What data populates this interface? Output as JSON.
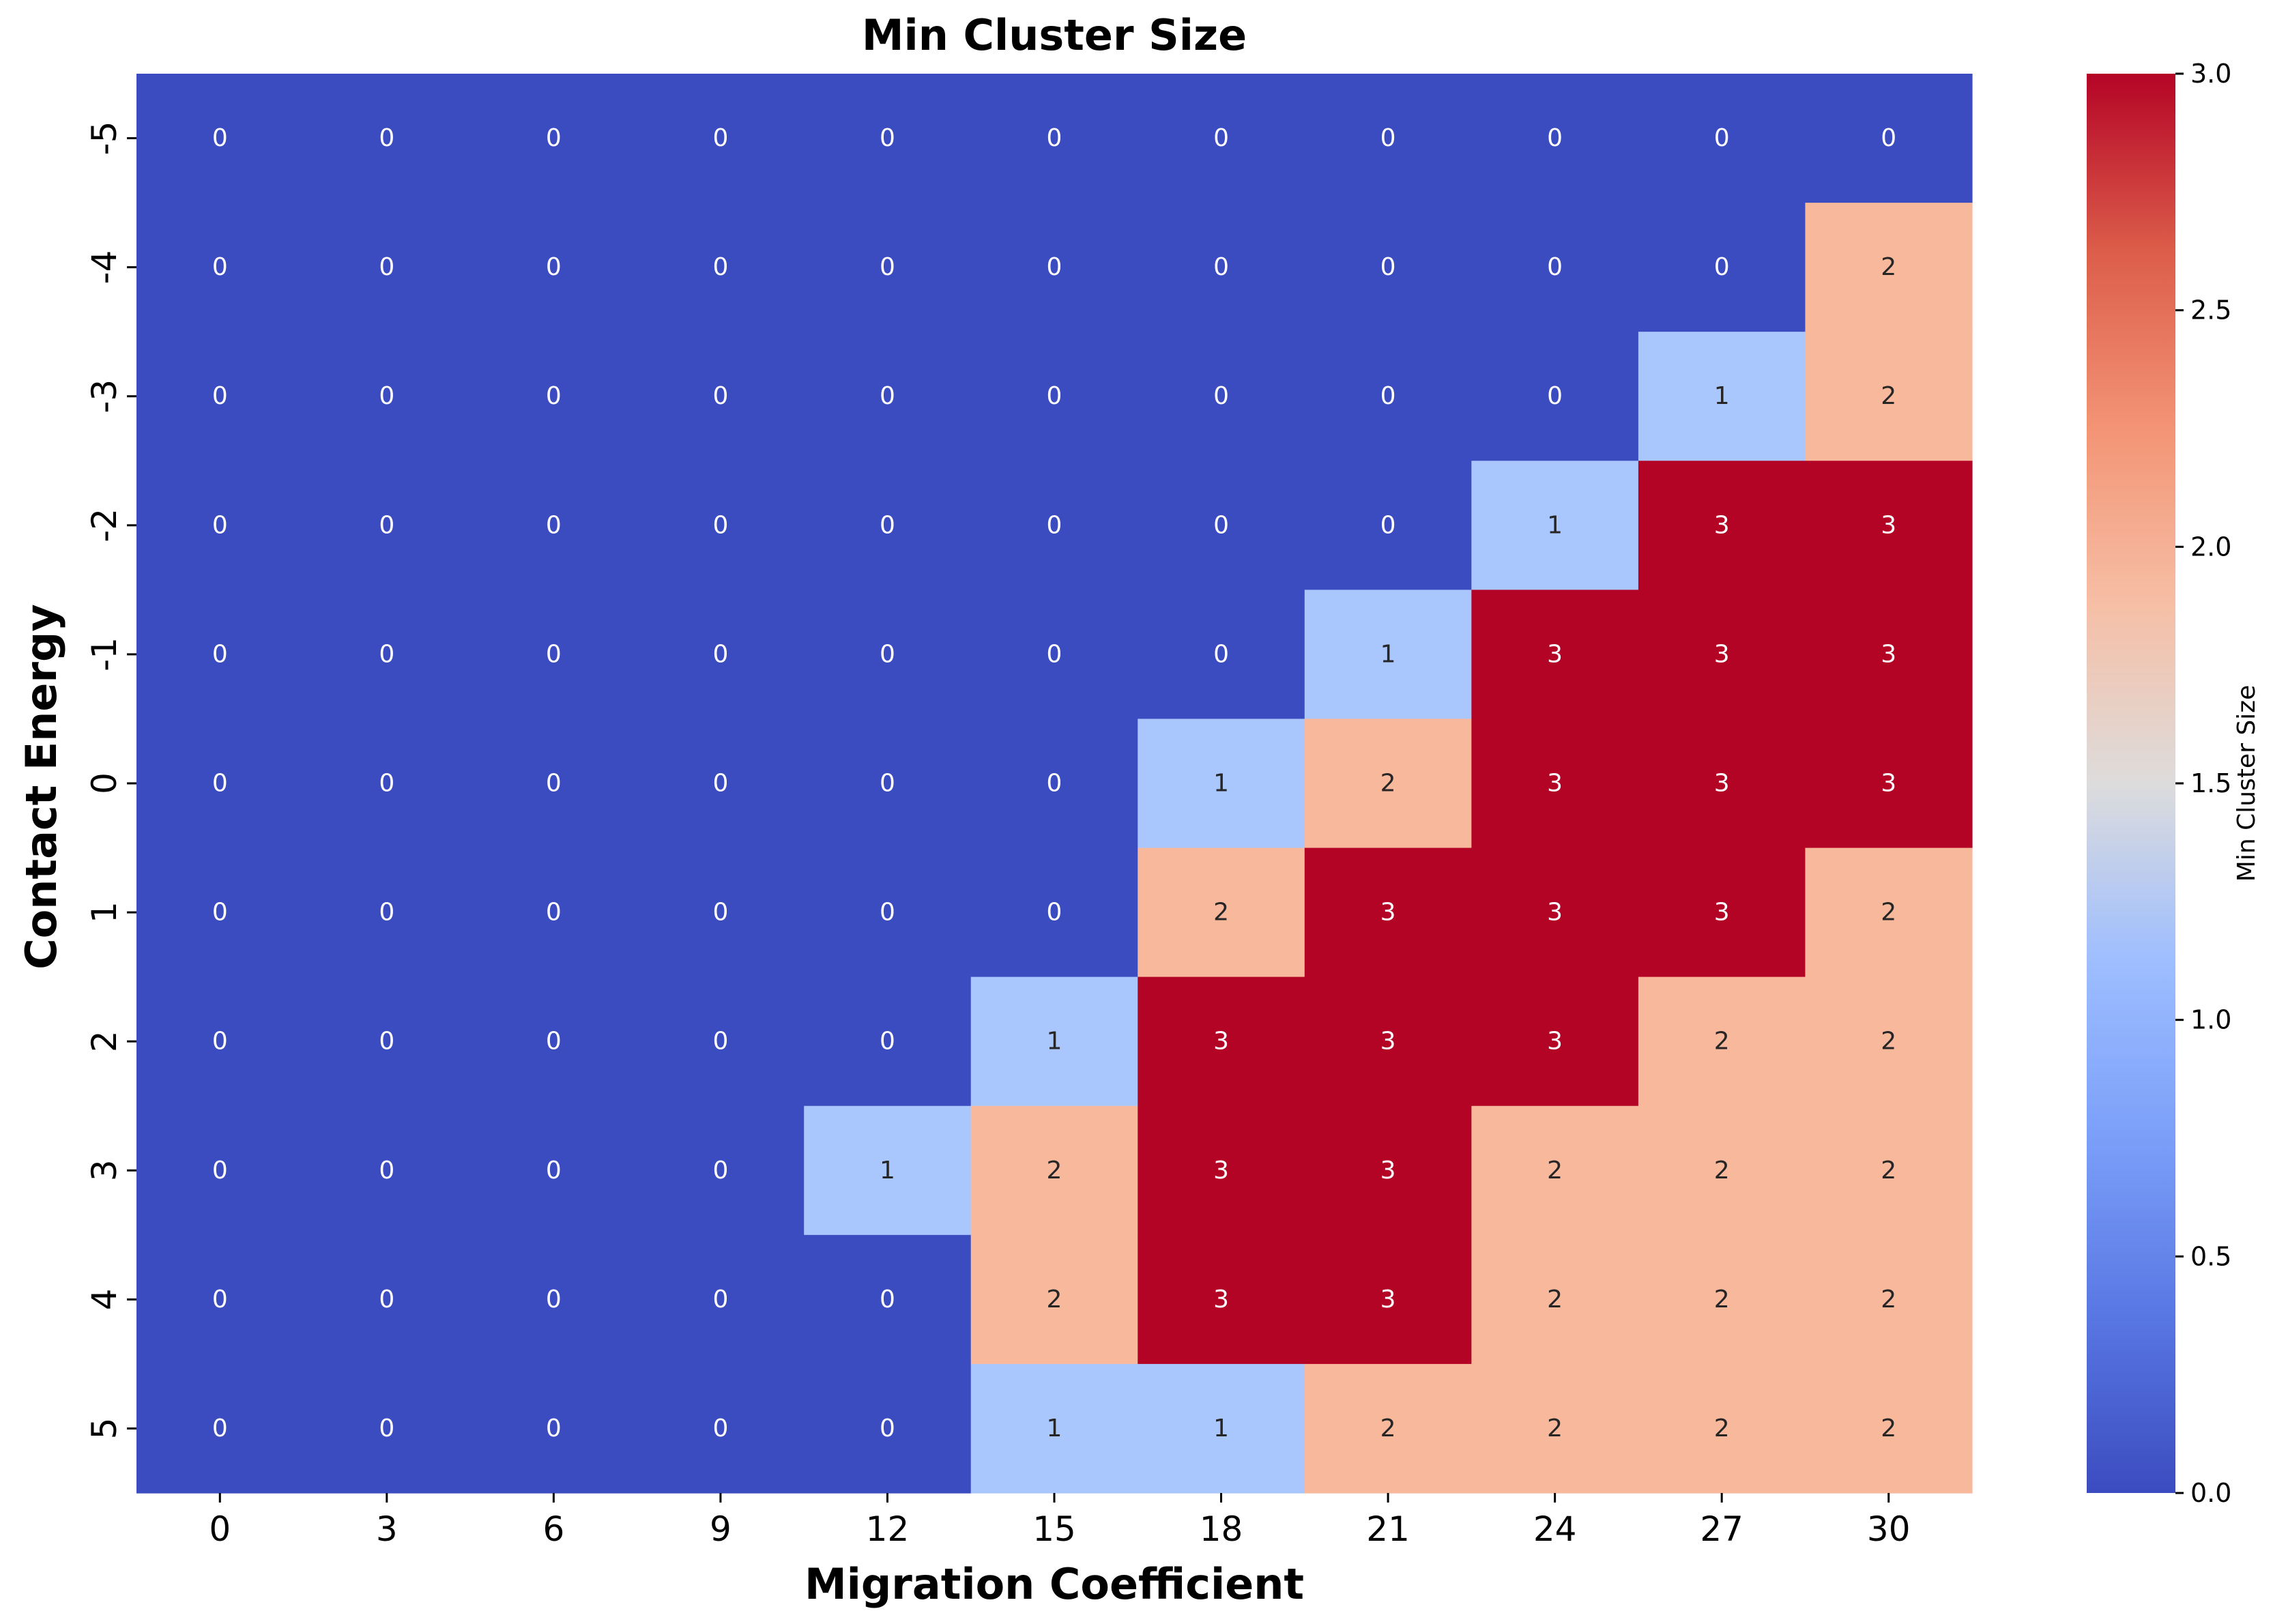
{
  "chart_data": {
    "type": "heatmap",
    "title": "Min Cluster Size",
    "xlabel": "Migration Coefficient",
    "ylabel": "Contact Energy",
    "x": [
      0,
      3,
      6,
      9,
      12,
      15,
      18,
      21,
      24,
      27,
      30
    ],
    "y": [
      -5,
      -4,
      -3,
      -2,
      -1,
      0,
      1,
      2,
      3,
      4,
      5
    ],
    "values": [
      [
        0,
        0,
        0,
        0,
        0,
        0,
        0,
        0,
        0,
        0,
        0
      ],
      [
        0,
        0,
        0,
        0,
        0,
        0,
        0,
        0,
        0,
        0,
        2
      ],
      [
        0,
        0,
        0,
        0,
        0,
        0,
        0,
        0,
        0,
        1,
        2
      ],
      [
        0,
        0,
        0,
        0,
        0,
        0,
        0,
        0,
        1,
        3,
        3
      ],
      [
        0,
        0,
        0,
        0,
        0,
        0,
        0,
        1,
        3,
        3,
        3
      ],
      [
        0,
        0,
        0,
        0,
        0,
        0,
        1,
        2,
        3,
        3,
        3
      ],
      [
        0,
        0,
        0,
        0,
        0,
        0,
        2,
        3,
        3,
        3,
        2
      ],
      [
        0,
        0,
        0,
        0,
        0,
        1,
        3,
        3,
        3,
        2,
        2
      ],
      [
        0,
        0,
        0,
        0,
        1,
        2,
        3,
        3,
        2,
        2,
        2
      ],
      [
        0,
        0,
        0,
        0,
        0,
        2,
        3,
        3,
        2,
        2,
        2
      ],
      [
        0,
        0,
        0,
        0,
        0,
        1,
        1,
        2,
        2,
        2,
        2
      ]
    ],
    "colorbar": {
      "label": "Min Cluster Size",
      "range": [
        0,
        3
      ],
      "ticks": [
        "0.0",
        "0.5",
        "1.0",
        "1.5",
        "2.0",
        "2.5",
        "3.0"
      ],
      "colormap": "coolwarm"
    },
    "colors": {
      "0": "#3b4cc0",
      "1": "#aac7fd",
      "2": "#f7b89c",
      "3": "#b40426"
    }
  }
}
